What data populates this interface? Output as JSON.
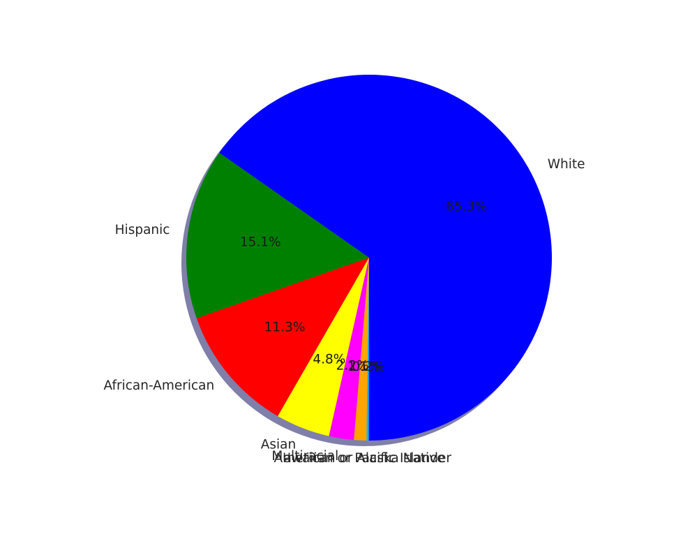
{
  "chart_data": {
    "type": "pie",
    "title": "",
    "shadow": true,
    "start_angle_deg": 145.0,
    "direction": "counterclockwise",
    "slices": [
      {
        "label": "Hispanic",
        "percent_label": "15.1%",
        "value": 15.1,
        "color": "#008000"
      },
      {
        "label": "African-American",
        "percent_label": "11.3%",
        "value": 11.3,
        "color": "#ff0000"
      },
      {
        "label": "Asian",
        "percent_label": "4.8%",
        "value": 4.8,
        "color": "#ffff00"
      },
      {
        "label": "Multiracial",
        "percent_label": "2.2%",
        "value": 2.2,
        "color": "#ff00ff"
      },
      {
        "label": "American or Alaska Native",
        "percent_label": "1.1%",
        "value": 1.1,
        "color": "#ffa500"
      },
      {
        "label": "awaiian or Pacific Islander",
        "percent_label": "0.2%",
        "value": 0.2,
        "color": "#00bfff"
      },
      {
        "label": "White",
        "percent_label": "65.3%",
        "value": 65.3,
        "color": "#0000ff"
      }
    ]
  }
}
